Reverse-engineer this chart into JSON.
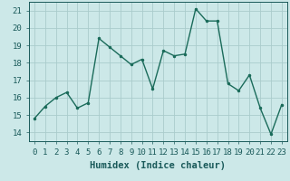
{
  "x": [
    0,
    1,
    2,
    3,
    4,
    5,
    6,
    7,
    8,
    9,
    10,
    11,
    12,
    13,
    14,
    15,
    16,
    17,
    18,
    19,
    20,
    21,
    22,
    23
  ],
  "y": [
    14.8,
    15.5,
    16.0,
    16.3,
    15.4,
    15.7,
    19.4,
    18.9,
    18.4,
    17.9,
    18.2,
    16.5,
    18.7,
    18.4,
    18.5,
    21.1,
    20.4,
    20.4,
    16.8,
    16.4,
    17.3,
    15.4,
    13.9,
    15.6
  ],
  "line_color": "#1a6b5a",
  "marker": ".",
  "marker_size": 3,
  "linewidth": 1.0,
  "xlabel": "Humidex (Indice chaleur)",
  "xlim": [
    -0.5,
    23.5
  ],
  "ylim": [
    13.5,
    21.5
  ],
  "yticks": [
    14,
    15,
    16,
    17,
    18,
    19,
    20,
    21
  ],
  "xticks": [
    0,
    1,
    2,
    3,
    4,
    5,
    6,
    7,
    8,
    9,
    10,
    11,
    12,
    13,
    14,
    15,
    16,
    17,
    18,
    19,
    20,
    21,
    22,
    23
  ],
  "background_color": "#cce8e8",
  "grid_color": "#aacccc",
  "xlabel_fontsize": 7.5,
  "tick_fontsize": 6.5
}
